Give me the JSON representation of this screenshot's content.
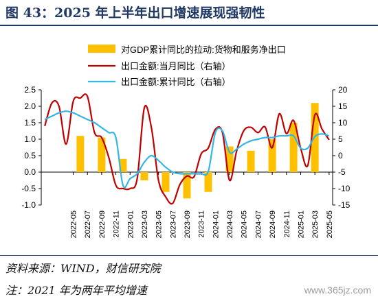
{
  "figure_title": "图 43：2025 年上半年出口增速展现强韧性",
  "source_note": "资料来源：WIND，财信研究院",
  "footnote": "注：2021 年为两年平均增速",
  "watermark": "www.365jz.com",
  "colors": {
    "bar": "#FFC000",
    "line_month": "#C00000",
    "line_cum": "#33B5E5",
    "title": "#1f3864"
  },
  "chart_data": {
    "type": "bar",
    "series": [
      {
        "name": "对GDP累计同比的拉动:货物和服务净出口",
        "kind": "bar",
        "axis": "left",
        "points": [
          [
            "2022-06",
            1.1
          ],
          [
            "2022-09",
            1.05
          ],
          [
            "2022-12",
            0.4
          ],
          [
            "2023-03",
            -0.25
          ],
          [
            "2023-06",
            -0.6
          ],
          [
            "2023-09",
            -0.8
          ],
          [
            "2023-12",
            -0.6
          ],
          [
            "2024-03",
            0.78
          ],
          [
            "2024-06",
            0.65
          ],
          [
            "2024-09",
            1.0
          ],
          [
            "2024-12",
            1.5
          ],
          [
            "2025-03",
            2.1
          ]
        ]
      },
      {
        "name": "出口金额:当月同比（右轴）",
        "kind": "line",
        "axis": "right",
        "points": [
          [
            "2022-01",
            9.0
          ],
          [
            "2022-02",
            16.0
          ],
          [
            "2022-03",
            15.0
          ],
          [
            "2022-04",
            3.5
          ],
          [
            "2022-05",
            16.5
          ],
          [
            "2022-06",
            17.5
          ],
          [
            "2022-07",
            18.0
          ],
          [
            "2022-08",
            7.0
          ],
          [
            "2022-09",
            5.5
          ],
          [
            "2022-10",
            -0.5
          ],
          [
            "2022-11",
            -9.0
          ],
          [
            "2022-12",
            -10.0
          ],
          [
            "2023-01",
            -10.0
          ],
          [
            "2023-02",
            -7.0
          ],
          [
            "2023-03",
            14.5
          ],
          [
            "2023-04",
            8.5
          ],
          [
            "2023-05",
            -7.5
          ],
          [
            "2023-06",
            -12.5
          ],
          [
            "2023-07",
            -14.5
          ],
          [
            "2023-08",
            -8.8
          ],
          [
            "2023-09",
            -6.2
          ],
          [
            "2023-10",
            -6.4
          ],
          [
            "2023-11",
            0.5
          ],
          [
            "2023-12",
            2.3
          ],
          [
            "2024-01",
            8.0
          ],
          [
            "2024-02",
            7.0
          ],
          [
            "2024-03",
            -7.5
          ],
          [
            "2024-04",
            1.5
          ],
          [
            "2024-05",
            7.6
          ],
          [
            "2024-06",
            8.6
          ],
          [
            "2024-07",
            7.0
          ],
          [
            "2024-08",
            8.7
          ],
          [
            "2024-09",
            2.4
          ],
          [
            "2024-10",
            12.7
          ],
          [
            "2024-11",
            6.7
          ],
          [
            "2024-12",
            10.7
          ],
          [
            "2025-01",
            2.3
          ],
          [
            "2025-02",
            -3.0
          ],
          [
            "2025-03",
            12.4
          ],
          [
            "2025-04",
            8.1
          ],
          [
            "2025-05",
            4.8
          ]
        ]
      },
      {
        "name": "出口金额:累计同比（右轴）",
        "kind": "line",
        "axis": "right",
        "points": [
          [
            "2022-01",
            11.0
          ],
          [
            "2022-02",
            12.0
          ],
          [
            "2022-03",
            13.0
          ],
          [
            "2022-04",
            13.5
          ],
          [
            "2022-05",
            13.0
          ],
          [
            "2022-06",
            12.0
          ],
          [
            "2022-07",
            11.0
          ],
          [
            "2022-08",
            10.0
          ],
          [
            "2022-09",
            8.5
          ],
          [
            "2022-10",
            7.0
          ],
          [
            "2022-11",
            5.5
          ],
          [
            "2022-12",
            -9.0
          ],
          [
            "2023-01",
            -7.0
          ],
          [
            "2023-02",
            -5.5
          ],
          [
            "2023-03",
            -2.0
          ],
          [
            "2023-04",
            0.0
          ],
          [
            "2023-05",
            -1.5
          ],
          [
            "2023-06",
            -3.5
          ],
          [
            "2023-07",
            -5.0
          ],
          [
            "2023-08",
            -5.5
          ],
          [
            "2023-09",
            -5.5
          ],
          [
            "2023-10",
            -5.5
          ],
          [
            "2023-11",
            -5.5
          ],
          [
            "2023-12",
            -4.8
          ],
          [
            "2024-01",
            7.0
          ],
          [
            "2024-02",
            7.5
          ],
          [
            "2024-03",
            1.0
          ],
          [
            "2024-04",
            2.0
          ],
          [
            "2024-05",
            3.5
          ],
          [
            "2024-06",
            4.5
          ],
          [
            "2024-07",
            5.0
          ],
          [
            "2024-08",
            5.5
          ],
          [
            "2024-09",
            5.5
          ],
          [
            "2024-10",
            6.0
          ],
          [
            "2024-11",
            6.0
          ],
          [
            "2024-12",
            6.0
          ],
          [
            "2025-01",
            2.3
          ],
          [
            "2025-02",
            2.3
          ],
          [
            "2025-03",
            5.8
          ],
          [
            "2025-04",
            6.6
          ],
          [
            "2025-05",
            6.0
          ]
        ]
      }
    ],
    "x_ticks": [
      "2022-05",
      "2022-07",
      "2022-09",
      "2022-11",
      "2023-01",
      "2023-03",
      "2023-05",
      "2023-07",
      "2023-09",
      "2023-11",
      "2024-01",
      "2024-03",
      "2024-05",
      "2024-07",
      "2024-09",
      "2024-11",
      "2025-01",
      "2025-03",
      "2025-05"
    ],
    "x_range": [
      "2022-01",
      "2025-05"
    ],
    "y_left": {
      "min": -1.0,
      "max": 2.5,
      "step": 0.5
    },
    "y_right": {
      "min": -15,
      "max": 20,
      "step": 5
    },
    "legend_position": "top-center"
  }
}
